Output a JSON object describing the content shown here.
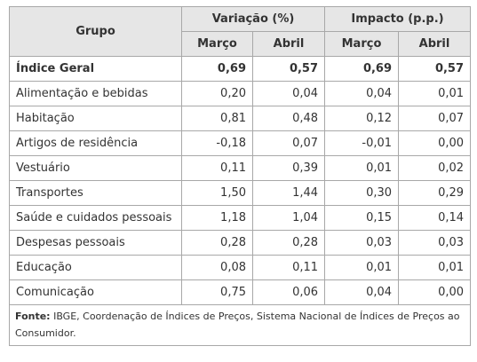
{
  "table": {
    "header": {
      "group": "Grupo",
      "groups": [
        "Variação (%)",
        "Impacto (p.p.)"
      ],
      "sub": [
        "Março",
        "Abril",
        "Março",
        "Abril"
      ]
    },
    "rows": [
      [
        "Índice Geral",
        "0,69",
        "0,57",
        "0,69",
        "0,57"
      ],
      [
        "Alimentação e bebidas",
        "0,20",
        "0,04",
        "0,04",
        "0,01"
      ],
      [
        "Habitação",
        "0,81",
        "0,48",
        "0,12",
        "0,07"
      ],
      [
        "Artigos de residência",
        "-0,18",
        "0,07",
        "-0,01",
        "0,00"
      ],
      [
        "Vestuário",
        "0,11",
        "0,39",
        "0,01",
        "0,02"
      ],
      [
        "Transportes",
        "1,50",
        "1,44",
        "0,30",
        "0,29"
      ],
      [
        "Saúde e cuidados pessoais",
        "1,18",
        "1,04",
        "0,15",
        "0,14"
      ],
      [
        "Despesas pessoais",
        "0,28",
        "0,28",
        "0,03",
        "0,03"
      ],
      [
        "Educação",
        "0,08",
        "0,11",
        "0,01",
        "0,01"
      ],
      [
        "Comunicação",
        "0,75",
        "0,06",
        "0,04",
        "0,00"
      ]
    ],
    "footer": {
      "label": "Fonte:",
      "text": "IBGE, Coordenação de Índices de Preços, Sistema Nacional de Índices de Preços ao Consumidor."
    }
  }
}
